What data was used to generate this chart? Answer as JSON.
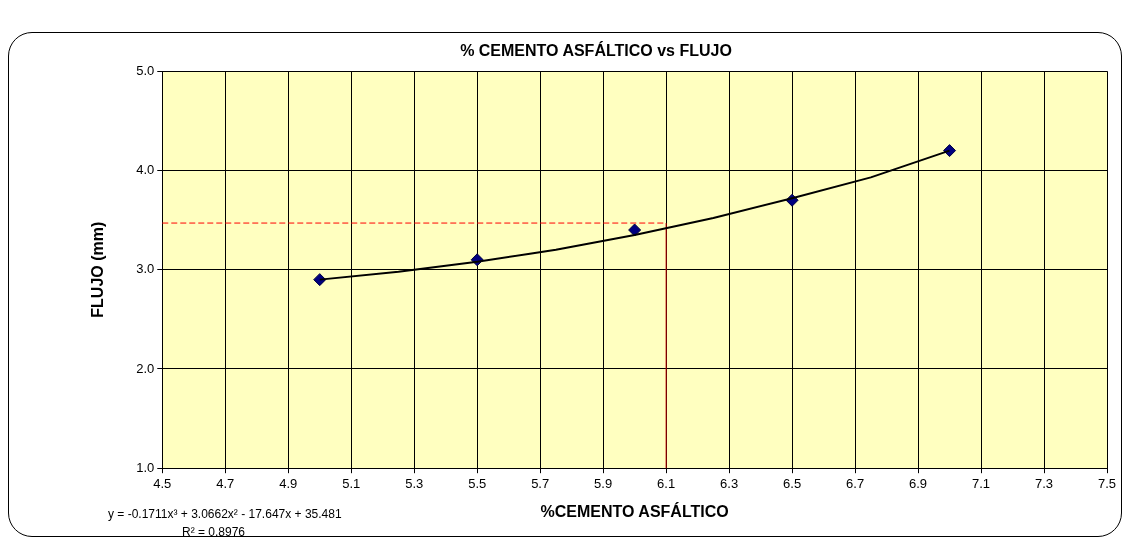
{
  "chart_data": {
    "type": "scatter",
    "title": "% CEMENTO ASFÁLTICO vs FLUJO",
    "xlabel": "%CEMENTO ASFÁLTICO",
    "ylabel": "FLUJO (mm)",
    "xlim": [
      4.5,
      7.5
    ],
    "xticks": [
      4.5,
      4.7,
      4.9,
      5.1,
      5.3,
      5.5,
      5.7,
      5.9,
      6.1,
      6.3,
      6.5,
      6.7,
      6.9,
      7.1,
      7.3,
      7.5
    ],
    "ylim": [
      1,
      5
    ],
    "yticks": [
      {
        "value": 1,
        "label": "1.0"
      },
      {
        "value": 2,
        "label": "2.0"
      },
      {
        "value": 3,
        "label": "3.0"
      },
      {
        "value": 4,
        "label": "4.0"
      },
      {
        "value": 5,
        "label": "5.0"
      }
    ],
    "grid": true,
    "legend": false,
    "marker": "diamond",
    "series": [
      {
        "type": "line",
        "color": "#000000",
        "marker": "none",
        "x": [
          5.0,
          5.25,
          5.5,
          5.75,
          6.0,
          6.25,
          6.5,
          6.75,
          7.0
        ],
        "values": [
          2.9,
          2.98,
          3.08,
          3.2,
          3.35,
          3.52,
          3.72,
          3.93,
          4.2
        ]
      },
      {
        "color": "#000080",
        "x": [
          5.0,
          5.5,
          6.0,
          6.5,
          7.0
        ],
        "values": [
          2.9,
          3.1,
          3.4,
          3.7,
          4.2
        ]
      }
    ],
    "ref_lines": [
      {
        "axis": "y",
        "value": 3.47,
        "color": "#ff0000",
        "line_style": "dashed"
      },
      {
        "axis": "x",
        "value": 6.1,
        "color": "#c00000",
        "line_style": "solid"
      }
    ],
    "annotations": [
      "y = -0.1711x³ + 3.0662x² - 17.647x + 35.481",
      "R² = 0.8976"
    ]
  }
}
